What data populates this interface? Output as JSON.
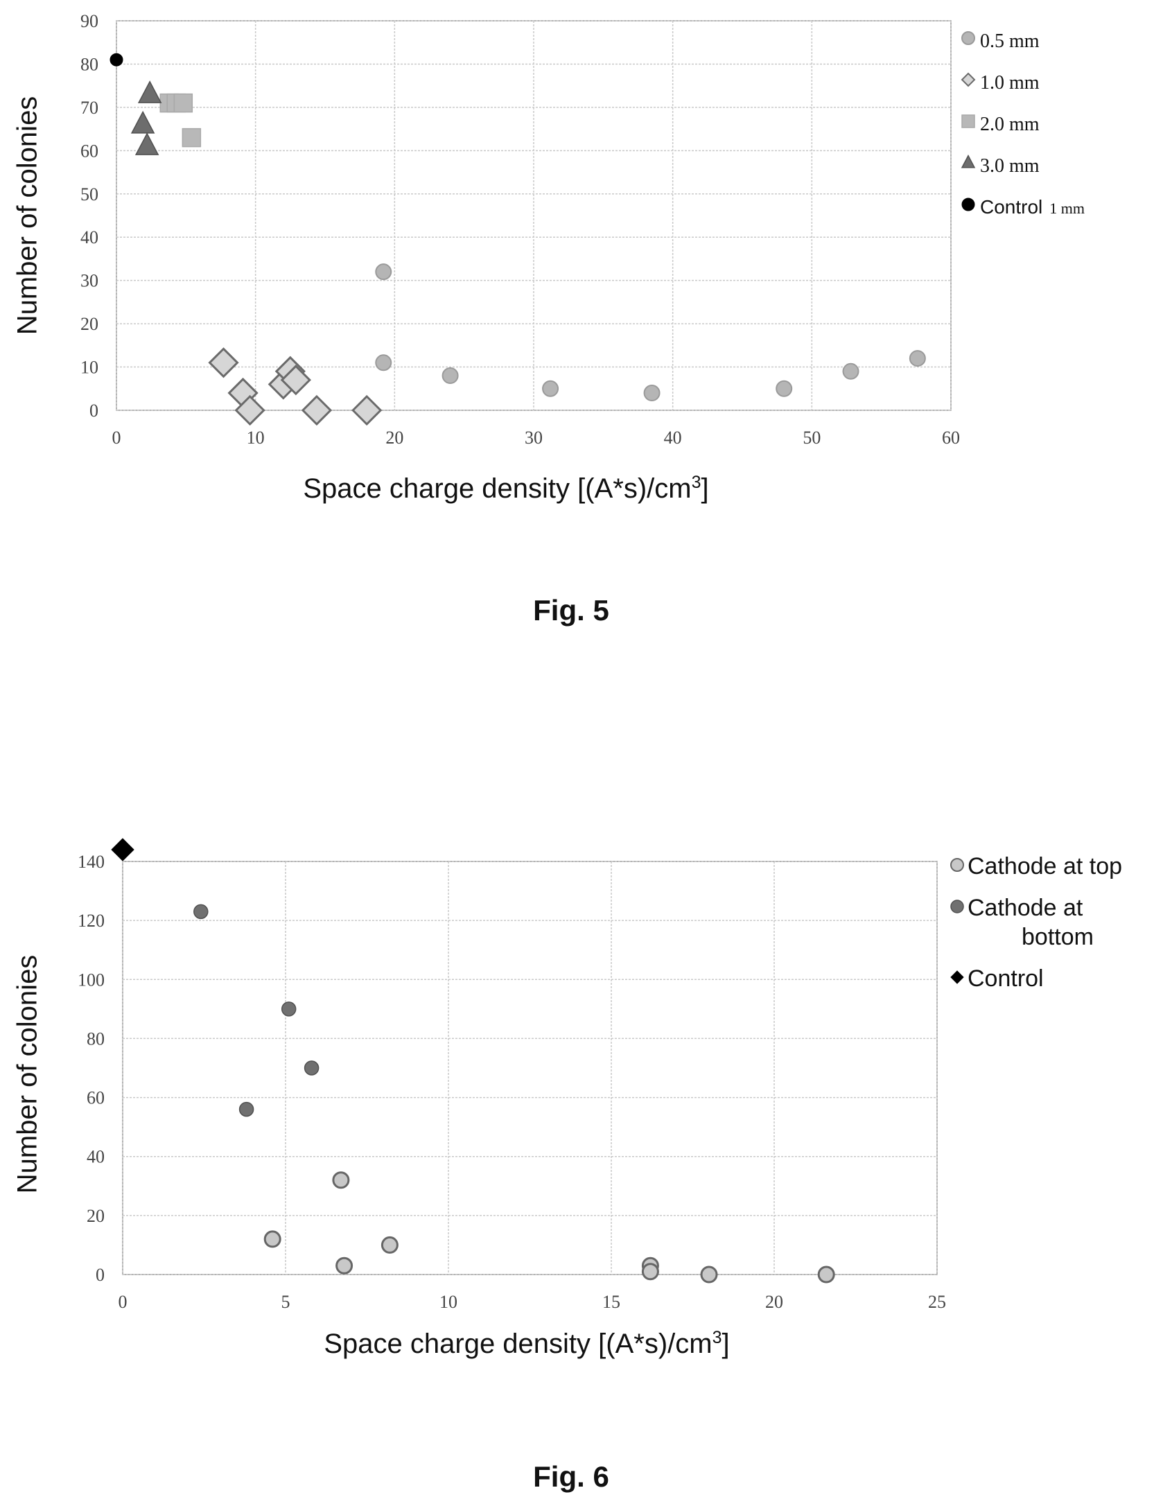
{
  "chart_data": [
    {
      "type": "scatter",
      "figure_label": "Fig. 5",
      "title": "",
      "xlabel": "Space charge density [(A*s)/cm",
      "xlabel_sup": "3",
      "xlabel_tail": "]",
      "ylabel": "Number of colonies",
      "xlim": [
        0,
        60
      ],
      "ylim": [
        0,
        90
      ],
      "x_ticks": [
        "0",
        "10",
        "20",
        "30",
        "40",
        "50",
        "60"
      ],
      "y_ticks": [
        "0",
        "10",
        "20",
        "30",
        "40",
        "50",
        "60",
        "70",
        "80",
        "90"
      ],
      "grid": true,
      "legend_position": "right",
      "series": [
        {
          "name": "0.5 mm",
          "marker": "circle",
          "color": "#b5b5b5",
          "points": [
            [
              19.2,
              32
            ],
            [
              19.2,
              11
            ],
            [
              24,
              8
            ],
            [
              31.2,
              5
            ],
            [
              38.5,
              4
            ],
            [
              48,
              5
            ],
            [
              52.8,
              9
            ],
            [
              57.6,
              12
            ]
          ]
        },
        {
          "name": "1.0 mm",
          "marker": "diamond",
          "color": "#d6d6d6",
          "points": [
            [
              7.7,
              11
            ],
            [
              9.1,
              4
            ],
            [
              9.6,
              0
            ],
            [
              12,
              6
            ],
            [
              12.5,
              9
            ],
            [
              12.9,
              7
            ],
            [
              14.4,
              0
            ],
            [
              18,
              0
            ]
          ]
        },
        {
          "name": "2.0 mm",
          "marker": "square",
          "color": "#b8b8b8",
          "points": [
            [
              3.8,
              71
            ],
            [
              4.3,
              71
            ],
            [
              4.8,
              71
            ],
            [
              5.4,
              63
            ]
          ]
        },
        {
          "name": "3.0 mm",
          "marker": "triangle",
          "color": "#6d6d6d",
          "points": [
            [
              2.4,
              73
            ],
            [
              1.9,
              66
            ],
            [
              2.2,
              61
            ]
          ]
        },
        {
          "name": "Control",
          "name_suffix": "1 mm",
          "marker": "circle",
          "color": "#000000",
          "points": [
            [
              0,
              81
            ]
          ]
        }
      ]
    },
    {
      "type": "scatter",
      "figure_label": "Fig. 6",
      "title": "",
      "xlabel": "Space charge density  [(A*s)/cm",
      "xlabel_sup": "3",
      "xlabel_tail": "]",
      "ylabel": "Number of colonies",
      "xlim": [
        0,
        25
      ],
      "ylim": [
        0,
        140
      ],
      "x_ticks": [
        "0",
        "5",
        "10",
        "15",
        "20",
        "25"
      ],
      "y_ticks": [
        "0",
        "20",
        "40",
        "60",
        "80",
        "100",
        "120",
        "140"
      ],
      "grid": true,
      "legend_position": "right",
      "series": [
        {
          "name": "Cathode at top",
          "marker": "circle",
          "color": "#c8c8c8",
          "points": [
            [
              4.6,
              12
            ],
            [
              6.7,
              32
            ],
            [
              6.8,
              3
            ],
            [
              8.2,
              10
            ],
            [
              16.2,
              3
            ],
            [
              16.2,
              1
            ],
            [
              18,
              0
            ],
            [
              21.6,
              0
            ]
          ]
        },
        {
          "name": "Cathode at bottom",
          "name_lines": [
            "Cathode at",
            "bottom"
          ],
          "marker": "circle",
          "color": "#707070",
          "points": [
            [
              2.4,
              123
            ],
            [
              3.8,
              56
            ],
            [
              5.1,
              90
            ],
            [
              5.8,
              70
            ]
          ]
        },
        {
          "name": "Control",
          "marker": "diamond",
          "color": "#000000",
          "points": [
            [
              0,
              144
            ]
          ]
        }
      ]
    }
  ]
}
